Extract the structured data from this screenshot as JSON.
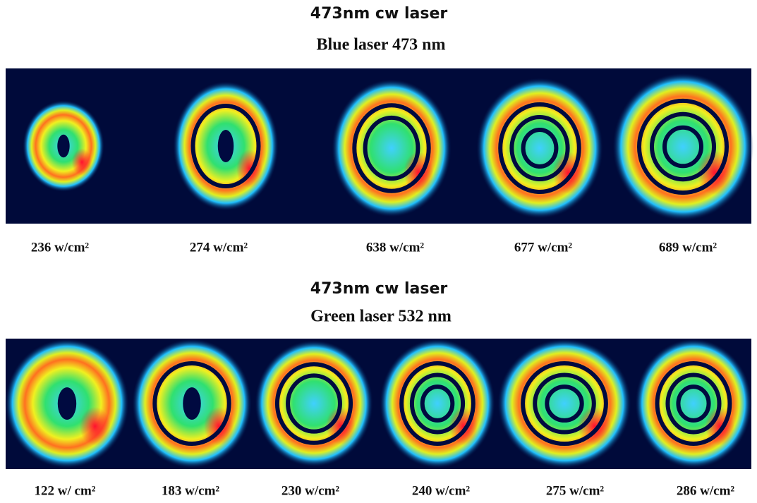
{
  "panels": [
    {
      "heading": "473nm cw laser",
      "subheading": "Blue laser 473 nm",
      "labels": [
        "236 w/cm²",
        "274 w/cm²",
        "638 w/cm²",
        "677 w/cm²",
        "689 w/cm²"
      ]
    },
    {
      "heading": "473nm cw laser",
      "subheading": "Green laser 532 nm",
      "labels": [
        "122 w/ cm²",
        "183 w/cm²",
        "230 w/cm²",
        "240 w/cm²",
        "275 w/cm²",
        "286 w/cm²"
      ]
    }
  ]
}
